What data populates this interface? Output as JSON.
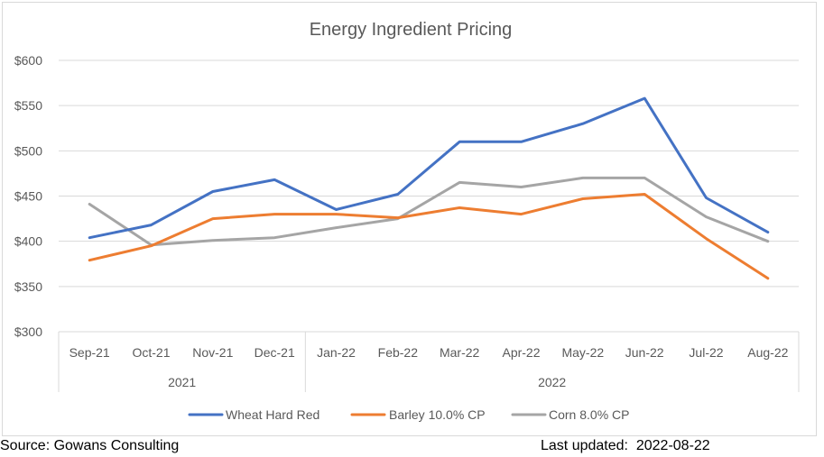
{
  "chart_data": {
    "type": "line",
    "title": "Energy Ingredient Pricing",
    "categories": [
      "Sep-21",
      "Oct-21",
      "Nov-21",
      "Dec-21",
      "Jan-22",
      "Feb-22",
      "Mar-22",
      "Apr-22",
      "May-22",
      "Jun-22",
      "Jul-22",
      "Aug-22"
    ],
    "category_groups": [
      {
        "label": "2021",
        "span": 4
      },
      {
        "label": "2022",
        "span": 8
      }
    ],
    "ylim": [
      300,
      600
    ],
    "yticks": [
      300,
      350,
      400,
      450,
      500,
      550,
      600
    ],
    "ytick_labels": [
      "$300",
      "$350",
      "$400",
      "$450",
      "$500",
      "$550",
      "$600"
    ],
    "grid": true,
    "legend_position": "bottom",
    "series": [
      {
        "name": "Wheat Hard Red",
        "color": "#4472c4",
        "values": [
          404,
          418,
          455,
          468,
          435,
          452,
          510,
          510,
          530,
          558,
          448,
          410
        ]
      },
      {
        "name": "Barley 10.0% CP",
        "color": "#ed7d31",
        "values": [
          379,
          395,
          425,
          430,
          430,
          426,
          437,
          430,
          447,
          452,
          403,
          359
        ]
      },
      {
        "name": "Corn 8.0% CP",
        "color": "#a5a5a5",
        "values": [
          441,
          396,
          401,
          404,
          415,
          425,
          465,
          460,
          470,
          470,
          427,
          400
        ]
      }
    ]
  },
  "footer": {
    "source": "Source: Gowans Consulting",
    "updated": "Last updated:  2022-08-22"
  }
}
